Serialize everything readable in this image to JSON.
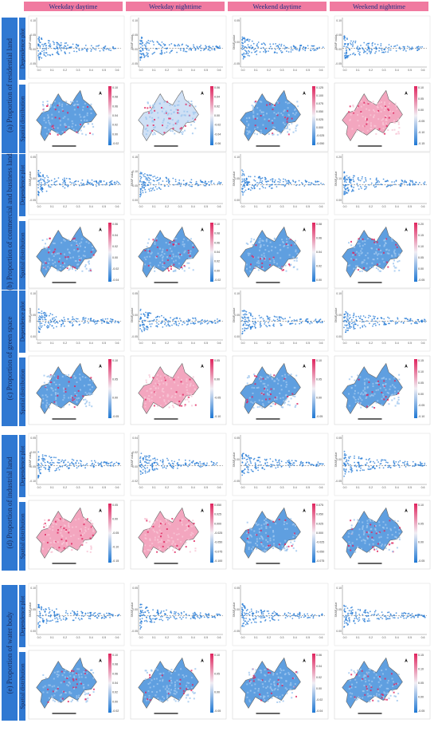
{
  "headers": [
    "Weekday daytime",
    "Weekday nighttime",
    "Weekend daytime",
    "Weekend nighttime"
  ],
  "rows": [
    {
      "label": "(a) Proportion of residential land",
      "dep": "Dependence plot",
      "spa": "Spatial distribution",
      "cb": [
        [
          "0.10",
          "0.08",
          "0.06",
          "0.04",
          "0.02",
          "0.00",
          "-0.02"
        ],
        [
          "0.06",
          "0.04",
          "0.02",
          "0.00",
          "-0.02",
          "-0.04",
          "-0.06"
        ],
        [
          "0.125",
          "0.100",
          "0.075",
          "0.050",
          "0.025",
          "0.000",
          "-0.025",
          "-0.050"
        ],
        [
          "0.10",
          "0.05",
          "0.00",
          "-0.05",
          "-0.10",
          "-0.15"
        ]
      ]
    },
    {
      "label": "(b) Proportion of commercial and business land",
      "dep": "Dependence plot",
      "spa": "Spatial distribution",
      "cb": [
        [
          "0.06",
          "0.04",
          "0.02",
          "0.00",
          "-0.02",
          "-0.04"
        ],
        [
          "0.10",
          "0.08",
          "0.06",
          "0.04",
          "0.02",
          "0.00",
          "-0.02"
        ],
        [
          "0.08",
          "0.06",
          "0.04",
          "0.02",
          "0.00"
        ],
        [
          "0.20",
          "0.15",
          "0.10",
          "0.05",
          "0.00",
          "-0.05"
        ]
      ]
    },
    {
      "label": "(c) Proportion of green space",
      "dep": "Dependence plot",
      "spa": "Spatial distribution",
      "cb": [
        [
          "0.10",
          "0.05",
          "0.00",
          "-0.05"
        ],
        [
          "0.05",
          "0.00",
          "-0.05",
          "-0.10"
        ],
        [
          "0.10",
          "0.05",
          "0.00",
          "-0.05"
        ],
        [
          "0.15",
          "0.10",
          "0.05",
          "0.00",
          "-0.05",
          "-0.10"
        ]
      ]
    },
    {
      "label": "(d) Proportion of industrial land",
      "dep": "Dependence plot",
      "spa": "Spatial distribution",
      "cb": [
        [
          "0.05",
          "0.00",
          "-0.05",
          "-0.10",
          "-0.15"
        ],
        [
          "0.050",
          "0.025",
          "0.000",
          "-0.025",
          "-0.050",
          "-0.075",
          "-0.100"
        ],
        [
          "0.075",
          "0.050",
          "0.025",
          "0.000",
          "-0.025",
          "-0.050",
          "-0.075"
        ],
        [
          "0.10",
          "0.05",
          "0.00",
          "-0.05"
        ]
      ]
    },
    {
      "label": "(e) Proportion of water body",
      "dep": "Dependence plot",
      "spa": "Spatial distribution",
      "cb": [
        [
          "0.10",
          "0.08",
          "0.06",
          "0.04",
          "0.02",
          "0.00",
          "-0.02"
        ],
        [
          "0.10",
          "0.05",
          "0.00",
          "-0.05"
        ],
        [
          "0.06",
          "0.04",
          "0.02",
          "0.00",
          "-0.02",
          "-0.04"
        ],
        [
          "0.15",
          "0.10",
          "0.05",
          "0.00",
          "-0.05"
        ]
      ]
    }
  ],
  "dep_yticks": [
    [
      [
        "0.10",
        "0.05",
        "0.00",
        "-0.05"
      ],
      [
        "0.10",
        "0.05",
        "0.00",
        "-0.05"
      ],
      [
        "0.05",
        "0.00",
        "-0.05"
      ],
      [
        "0.10",
        "0.05",
        "0.00",
        "-0.05"
      ]
    ],
    [
      [
        "0.05",
        "0.00",
        "-0.05"
      ],
      [
        "0.15",
        "0.10",
        "0.05",
        "0.00"
      ],
      [
        "0.10",
        "0.05",
        "0.00"
      ],
      [
        "0.20",
        "0.10",
        "0.00"
      ]
    ],
    [
      [
        "0.10",
        "0.05",
        "0.00"
      ],
      [
        "0.05",
        "0.00",
        "-0.05"
      ],
      [
        "0.10",
        "0.05",
        "0.00"
      ],
      [
        "0.10",
        "0.05",
        "0.00"
      ]
    ],
    [
      [
        "0.05",
        "0.00",
        "-0.05",
        "-0.10"
      ],
      [
        "0.04",
        "0.02",
        "0.00",
        "-0.02"
      ],
      [
        "0.05",
        "0.00",
        "-0.05"
      ],
      [
        "0.05",
        "0.00",
        "-0.05"
      ]
    ],
    [
      [
        "0.10",
        "0.05",
        "0.00"
      ],
      [
        "0.05",
        "0.00",
        "-0.05"
      ],
      [
        "0.05",
        "0.00",
        "-0.05"
      ],
      [
        "0.10",
        "0.05",
        "0.00"
      ]
    ]
  ],
  "dep_xticks": [
    "0.0",
    "0.1",
    "0.2",
    "0.3",
    "0.4",
    "0.5",
    "0.6"
  ],
  "dep_ylabel": "SHAP value",
  "colors": {
    "header": "#f07aa0",
    "label": "#2f78d2",
    "point": "#1f77d4",
    "high": "#e0245e",
    "low": "#1f78d4"
  }
}
